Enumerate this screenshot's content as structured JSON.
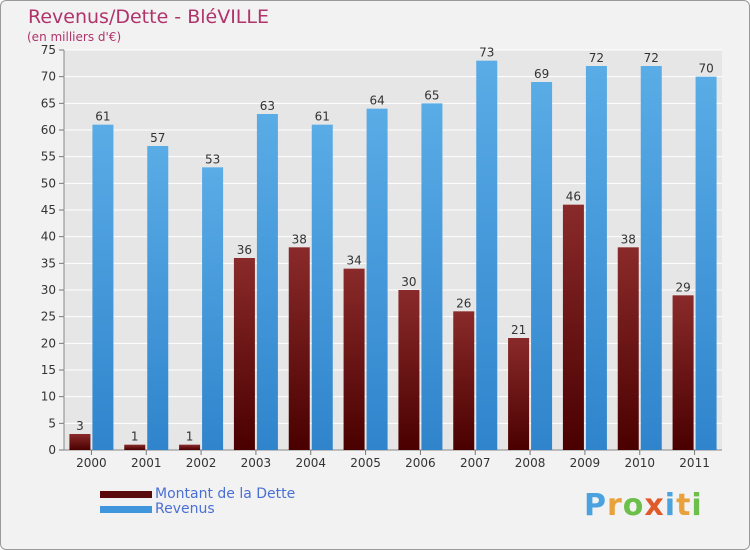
{
  "title": "Revenus/Dette - BléVILLE",
  "subtitle": "(en milliers d'€)",
  "legend": {
    "debt_label": "Montant de la Dette",
    "revenue_label": "Revenus"
  },
  "logo": {
    "letters": [
      "P",
      "r",
      "o",
      "x",
      "i",
      "t",
      "i"
    ],
    "colors": [
      "#4aa3df",
      "#e9a23b",
      "#6cbf4a",
      "#e05a2a",
      "#4aa3df",
      "#e9a23b",
      "#6cbf4a"
    ]
  },
  "colors": {
    "debt": "#7a1c1c",
    "debt_dark": "#4a0000",
    "revenue": "#5aace6",
    "revenue_dark": "#2a78c0",
    "axis_text": "#333333",
    "grid": "#ffffff"
  },
  "chart_data": {
    "type": "bar",
    "categories": [
      "2000",
      "2001",
      "2002",
      "2003",
      "2004",
      "2005",
      "2006",
      "2007",
      "2008",
      "2009",
      "2010",
      "2011"
    ],
    "series": [
      {
        "name": "Montant de la Dette",
        "values": [
          3,
          1,
          1,
          36,
          38,
          34,
          30,
          26,
          21,
          46,
          38,
          29
        ]
      },
      {
        "name": "Revenus",
        "values": [
          61,
          57,
          53,
          63,
          61,
          64,
          65,
          73,
          69,
          72,
          72,
          70
        ]
      }
    ],
    "ylim": [
      0,
      75
    ],
    "yticks": [
      0,
      5,
      10,
      15,
      20,
      25,
      30,
      35,
      40,
      45,
      50,
      55,
      60,
      65,
      70,
      75
    ],
    "grid": true,
    "legend_position": "bottom-left"
  }
}
